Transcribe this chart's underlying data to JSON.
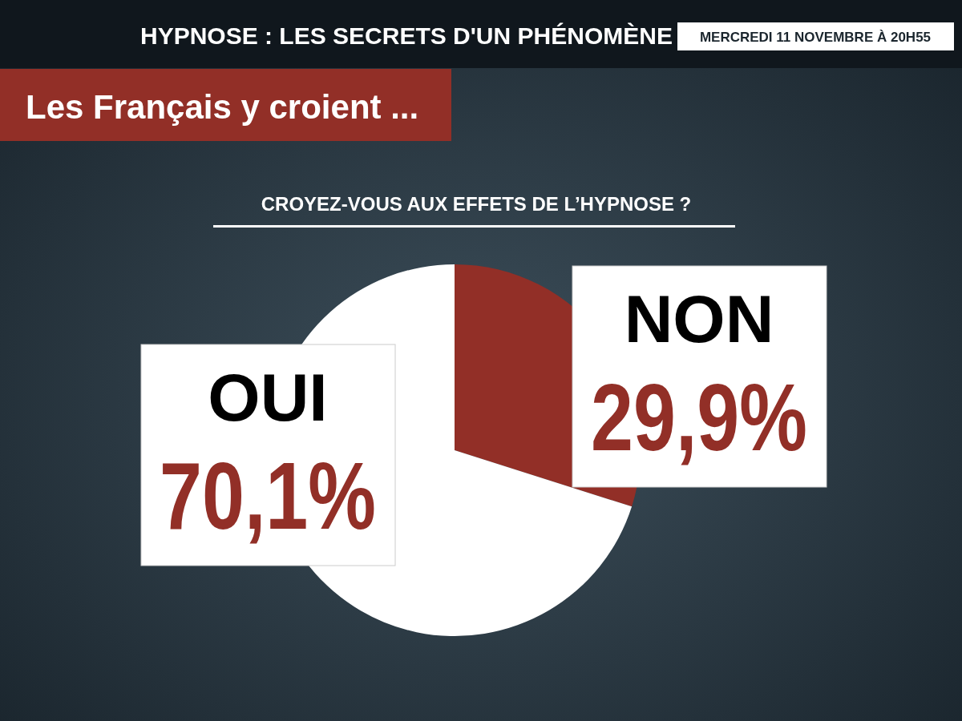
{
  "chart_data": {
    "type": "pie",
    "title": "CROYEZ-VOUS AUX EFFETS DE L’HYPNOSE ?",
    "categories": [
      "NON",
      "OUI"
    ],
    "values": [
      29.9,
      70.1
    ],
    "colors": [
      "#922f27",
      "#ffffff"
    ],
    "value_labels": [
      "29,9%",
      "70,1%"
    ],
    "annotations": [
      "HYPNOSE : LES SECRETS D'UN PHÉNOMÈNE",
      "MERCREDI 11 NOVEMBRE À 20H55",
      "Les Français y croient ..."
    ]
  }
}
